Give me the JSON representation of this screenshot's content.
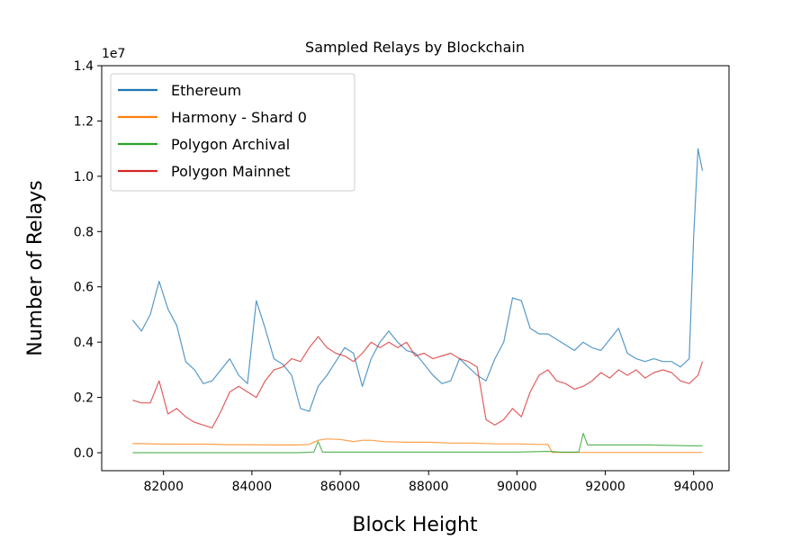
{
  "chart_data": {
    "type": "line",
    "title": "Sampled Relays by Blockchain",
    "xlabel": "Block Height",
    "ylabel": "Number of Relays",
    "y_offset_label": "1e7",
    "xlim": [
      80600,
      94800
    ],
    "ylim": [
      -0.065,
      1.4
    ],
    "xticks": [
      82000,
      84000,
      86000,
      88000,
      90000,
      92000,
      94000
    ],
    "yticks": [
      0.0,
      0.2,
      0.4,
      0.6,
      0.8,
      1.0,
      1.2,
      1.4
    ],
    "xtick_labels": [
      "82000",
      "84000",
      "86000",
      "88000",
      "90000",
      "92000",
      "94000"
    ],
    "ytick_labels": [
      "0.0",
      "0.2",
      "0.4",
      "0.6",
      "0.8",
      "1.0",
      "1.2",
      "1.4"
    ],
    "grid": false,
    "legend_position": "top-left",
    "series": [
      {
        "name": "Ethereum",
        "color": "#1f77b4",
        "x": [
          81300,
          81500,
          81700,
          81900,
          82100,
          82300,
          82500,
          82700,
          82900,
          83100,
          83300,
          83500,
          83700,
          83900,
          84100,
          84300,
          84500,
          84700,
          84900,
          85100,
          85300,
          85500,
          85700,
          85900,
          86100,
          86300,
          86500,
          86700,
          86900,
          87100,
          87300,
          87500,
          87700,
          87900,
          88100,
          88300,
          88500,
          88700,
          88900,
          89100,
          89300,
          89500,
          89700,
          89900,
          90100,
          90300,
          90500,
          90700,
          90900,
          91100,
          91300,
          91500,
          91700,
          91900,
          92100,
          92300,
          92500,
          92700,
          92900,
          93100,
          93300,
          93500,
          93700,
          93900,
          94000,
          94100,
          94200
        ],
        "y": [
          0.48,
          0.44,
          0.5,
          0.62,
          0.52,
          0.46,
          0.33,
          0.3,
          0.25,
          0.26,
          0.3,
          0.34,
          0.28,
          0.25,
          0.55,
          0.45,
          0.34,
          0.32,
          0.28,
          0.16,
          0.15,
          0.24,
          0.28,
          0.33,
          0.38,
          0.36,
          0.24,
          0.34,
          0.4,
          0.44,
          0.4,
          0.37,
          0.36,
          0.32,
          0.28,
          0.25,
          0.26,
          0.34,
          0.31,
          0.28,
          0.26,
          0.34,
          0.4,
          0.56,
          0.55,
          0.45,
          0.43,
          0.43,
          0.41,
          0.39,
          0.37,
          0.4,
          0.38,
          0.37,
          0.41,
          0.45,
          0.36,
          0.34,
          0.33,
          0.34,
          0.33,
          0.33,
          0.31,
          0.34,
          0.78,
          1.1,
          1.02
        ]
      },
      {
        "name": "Harmony - Shard 0",
        "color": "#ff7f0e",
        "x": [
          81300,
          81500,
          82000,
          82500,
          83000,
          83500,
          84000,
          84500,
          85000,
          85300,
          85500,
          85700,
          86000,
          86300,
          86500,
          86700,
          87000,
          87500,
          88000,
          88500,
          89000,
          89500,
          90000,
          90500,
          90700,
          90800,
          91500,
          92000,
          92500,
          93000,
          93500,
          94000,
          94200
        ],
        "y": [
          0.033,
          0.033,
          0.031,
          0.031,
          0.031,
          0.029,
          0.029,
          0.028,
          0.028,
          0.03,
          0.045,
          0.05,
          0.048,
          0.04,
          0.045,
          0.045,
          0.04,
          0.038,
          0.038,
          0.035,
          0.035,
          0.032,
          0.032,
          0.03,
          0.03,
          0.001,
          0.001,
          0.001,
          0.001,
          0.001,
          0.001,
          0.001,
          0.001
        ]
      },
      {
        "name": "Polygon Archival",
        "color": "#2ca02c",
        "x": [
          81300,
          82000,
          83000,
          84000,
          85000,
          85400,
          85500,
          85600,
          86000,
          86600,
          87000,
          88000,
          89000,
          90000,
          90700,
          91000,
          91400,
          91500,
          91600,
          92000,
          93000,
          94000,
          94200
        ],
        "y": [
          0.0,
          0.0,
          0.0,
          0.0,
          0.0,
          0.002,
          0.04,
          0.002,
          0.002,
          0.002,
          0.002,
          0.002,
          0.002,
          0.002,
          0.005,
          0.002,
          0.002,
          0.07,
          0.028,
          0.028,
          0.028,
          0.025,
          0.025
        ]
      },
      {
        "name": "Polygon Mainnet",
        "color": "#d62728",
        "x": [
          81300,
          81500,
          81700,
          81900,
          82100,
          82300,
          82500,
          82700,
          82900,
          83100,
          83300,
          83500,
          83700,
          83900,
          84100,
          84300,
          84500,
          84700,
          84900,
          85100,
          85300,
          85500,
          85700,
          85900,
          86100,
          86300,
          86500,
          86700,
          86900,
          87100,
          87300,
          87500,
          87700,
          87900,
          88100,
          88300,
          88500,
          88700,
          88900,
          89100,
          89300,
          89500,
          89700,
          89900,
          90100,
          90300,
          90500,
          90700,
          90900,
          91100,
          91300,
          91500,
          91700,
          91900,
          92100,
          92300,
          92500,
          92700,
          92900,
          93100,
          93300,
          93500,
          93700,
          93900,
          94100,
          94200
        ],
        "y": [
          0.19,
          0.18,
          0.18,
          0.26,
          0.14,
          0.16,
          0.13,
          0.11,
          0.1,
          0.09,
          0.15,
          0.22,
          0.24,
          0.22,
          0.2,
          0.26,
          0.3,
          0.31,
          0.34,
          0.33,
          0.38,
          0.42,
          0.38,
          0.36,
          0.35,
          0.33,
          0.36,
          0.4,
          0.38,
          0.4,
          0.38,
          0.4,
          0.35,
          0.36,
          0.34,
          0.35,
          0.36,
          0.34,
          0.33,
          0.31,
          0.12,
          0.1,
          0.12,
          0.16,
          0.13,
          0.22,
          0.28,
          0.3,
          0.26,
          0.25,
          0.23,
          0.24,
          0.26,
          0.29,
          0.27,
          0.3,
          0.28,
          0.3,
          0.27,
          0.29,
          0.3,
          0.29,
          0.26,
          0.25,
          0.28,
          0.33
        ]
      }
    ]
  }
}
